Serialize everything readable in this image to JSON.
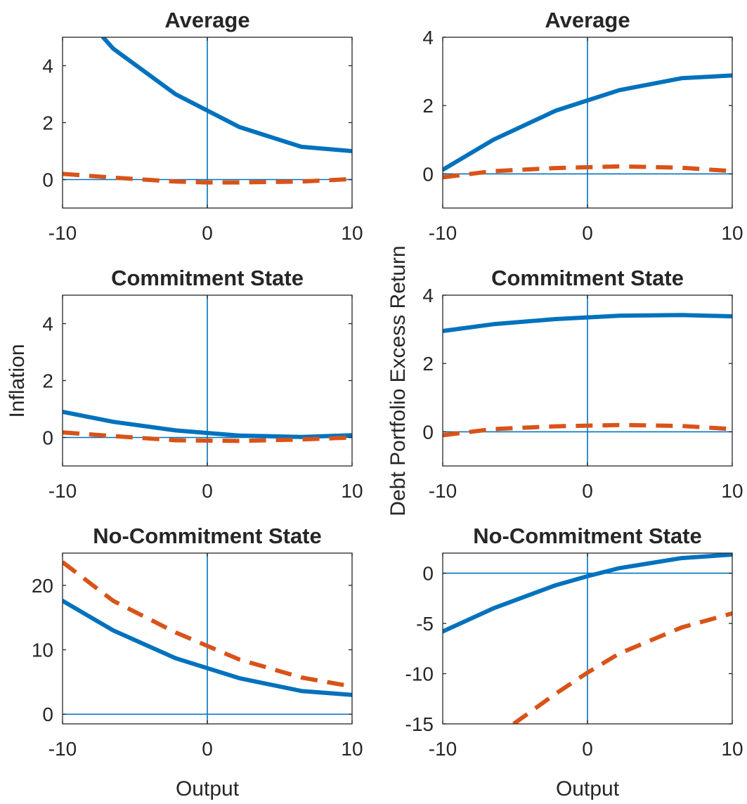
{
  "chart_data": [
    {
      "type": "line",
      "title": "Average",
      "xlabel": "",
      "ylabel": "",
      "xlim": [
        -10,
        10
      ],
      "ylim": [
        -1,
        5
      ],
      "xticks": [
        -10,
        0,
        10
      ],
      "yticks": [
        0,
        2,
        4
      ],
      "grid": false,
      "reference_lines": {
        "x": 0,
        "y": 0
      },
      "series": [
        {
          "style": "solid",
          "color": "#0072BD",
          "x": [
            -7.2,
            -6.5,
            -2.2,
            2.2,
            6.5,
            10
          ],
          "y": [
            5.0,
            4.6,
            3.0,
            1.85,
            1.15,
            1.0
          ]
        },
        {
          "style": "dashed",
          "color": "#D95319",
          "x": [
            -10,
            -6.5,
            -2.2,
            0,
            2.2,
            6.5,
            10
          ],
          "y": [
            0.2,
            0.07,
            -0.07,
            -0.1,
            -0.1,
            -0.07,
            0.02
          ]
        }
      ]
    },
    {
      "type": "line",
      "title": "Average",
      "xlabel": "",
      "ylabel": "",
      "xlim": [
        -10,
        10
      ],
      "ylim": [
        -1,
        4
      ],
      "xticks": [
        -10,
        0,
        10
      ],
      "yticks": [
        0,
        2,
        4
      ],
      "grid": false,
      "reference_lines": {
        "x": 0,
        "y": 0
      },
      "series": [
        {
          "style": "solid",
          "color": "#0072BD",
          "x": [
            -10,
            -6.5,
            -2.2,
            0,
            2.2,
            6.5,
            10
          ],
          "y": [
            0.12,
            1.0,
            1.85,
            2.15,
            2.45,
            2.8,
            2.88
          ]
        },
        {
          "style": "dashed",
          "color": "#D95319",
          "x": [
            -10,
            -6.5,
            -2.2,
            2.2,
            6.5,
            10
          ],
          "y": [
            -0.1,
            0.08,
            0.17,
            0.22,
            0.18,
            0.08
          ]
        }
      ]
    },
    {
      "type": "line",
      "title": "Commitment State",
      "xlabel": "",
      "ylabel": "Inflation",
      "xlim": [
        -10,
        10
      ],
      "ylim": [
        -1,
        5
      ],
      "xticks": [
        -10,
        0,
        10
      ],
      "yticks": [
        0,
        2,
        4
      ],
      "grid": false,
      "reference_lines": {
        "x": 0,
        "y": 0
      },
      "series": [
        {
          "style": "solid",
          "color": "#0072BD",
          "x": [
            -10,
            -6.5,
            -2.2,
            2.2,
            6.5,
            10
          ],
          "y": [
            0.9,
            0.55,
            0.25,
            0.07,
            0.02,
            0.08
          ]
        },
        {
          "style": "dashed",
          "color": "#D95319",
          "x": [
            -10,
            -6.5,
            -2.2,
            2.2,
            6.5,
            10
          ],
          "y": [
            0.18,
            0.05,
            -0.1,
            -0.12,
            -0.07,
            0.0
          ]
        }
      ]
    },
    {
      "type": "line",
      "title": "Commitment State",
      "xlabel": "",
      "ylabel": "",
      "xlim": [
        -10,
        10
      ],
      "ylim": [
        -1,
        4
      ],
      "xticks": [
        -10,
        0,
        10
      ],
      "yticks": [
        0,
        2,
        4
      ],
      "grid": false,
      "reference_lines": {
        "x": 0,
        "y": 0
      },
      "series": [
        {
          "style": "solid",
          "color": "#0072BD",
          "x": [
            -10,
            -6.5,
            -2.2,
            2.2,
            6.5,
            10
          ],
          "y": [
            2.95,
            3.15,
            3.3,
            3.4,
            3.42,
            3.38
          ]
        },
        {
          "style": "dashed",
          "color": "#D95319",
          "x": [
            -10,
            -6.5,
            -2.2,
            2.2,
            6.5,
            10
          ],
          "y": [
            -0.1,
            0.08,
            0.16,
            0.2,
            0.17,
            0.08
          ]
        }
      ]
    },
    {
      "type": "line",
      "title": "No-Commitment State",
      "xlabel": "Output",
      "ylabel": "",
      "xlim": [
        -10,
        10
      ],
      "ylim": [
        -1.5,
        25
      ],
      "xticks": [
        -10,
        0,
        10
      ],
      "yticks": [
        0,
        10,
        20
      ],
      "grid": false,
      "reference_lines": {
        "x": 0,
        "y": 0
      },
      "series": [
        {
          "style": "solid",
          "color": "#0072BD",
          "x": [
            -10,
            -6.5,
            -2.2,
            2.2,
            6.5,
            10
          ],
          "y": [
            17.6,
            13.0,
            8.7,
            5.6,
            3.6,
            3.0
          ]
        },
        {
          "style": "dashed",
          "color": "#D95319",
          "x": [
            -10,
            -6.5,
            -2.2,
            2.2,
            6.5,
            10
          ],
          "y": [
            23.6,
            17.6,
            12.7,
            8.5,
            5.7,
            4.3
          ]
        }
      ]
    },
    {
      "type": "line",
      "title": "No-Commitment State",
      "xlabel": "Output",
      "ylabel": "",
      "xlim": [
        -10,
        10
      ],
      "ylim": [
        -15,
        2
      ],
      "xticks": [
        -10,
        0,
        10
      ],
      "yticks": [
        -15,
        -10,
        -5,
        0
      ],
      "grid": false,
      "reference_lines": {
        "x": 0,
        "y": 0
      },
      "series": [
        {
          "style": "solid",
          "color": "#0072BD",
          "x": [
            -10,
            -6.5,
            -2.2,
            0,
            2.2,
            6.5,
            10
          ],
          "y": [
            -5.8,
            -3.5,
            -1.2,
            -0.3,
            0.5,
            1.5,
            1.85
          ]
        },
        {
          "style": "dashed",
          "color": "#D95319",
          "x": [
            -5.1,
            -2.2,
            0,
            2.2,
            6.5,
            10
          ],
          "y": [
            -15.0,
            -12.0,
            -9.9,
            -8.0,
            -5.4,
            -4.0
          ]
        }
      ]
    }
  ],
  "figure": {
    "shared_ylabel_right": "Debt Portfolio Excess Return"
  }
}
